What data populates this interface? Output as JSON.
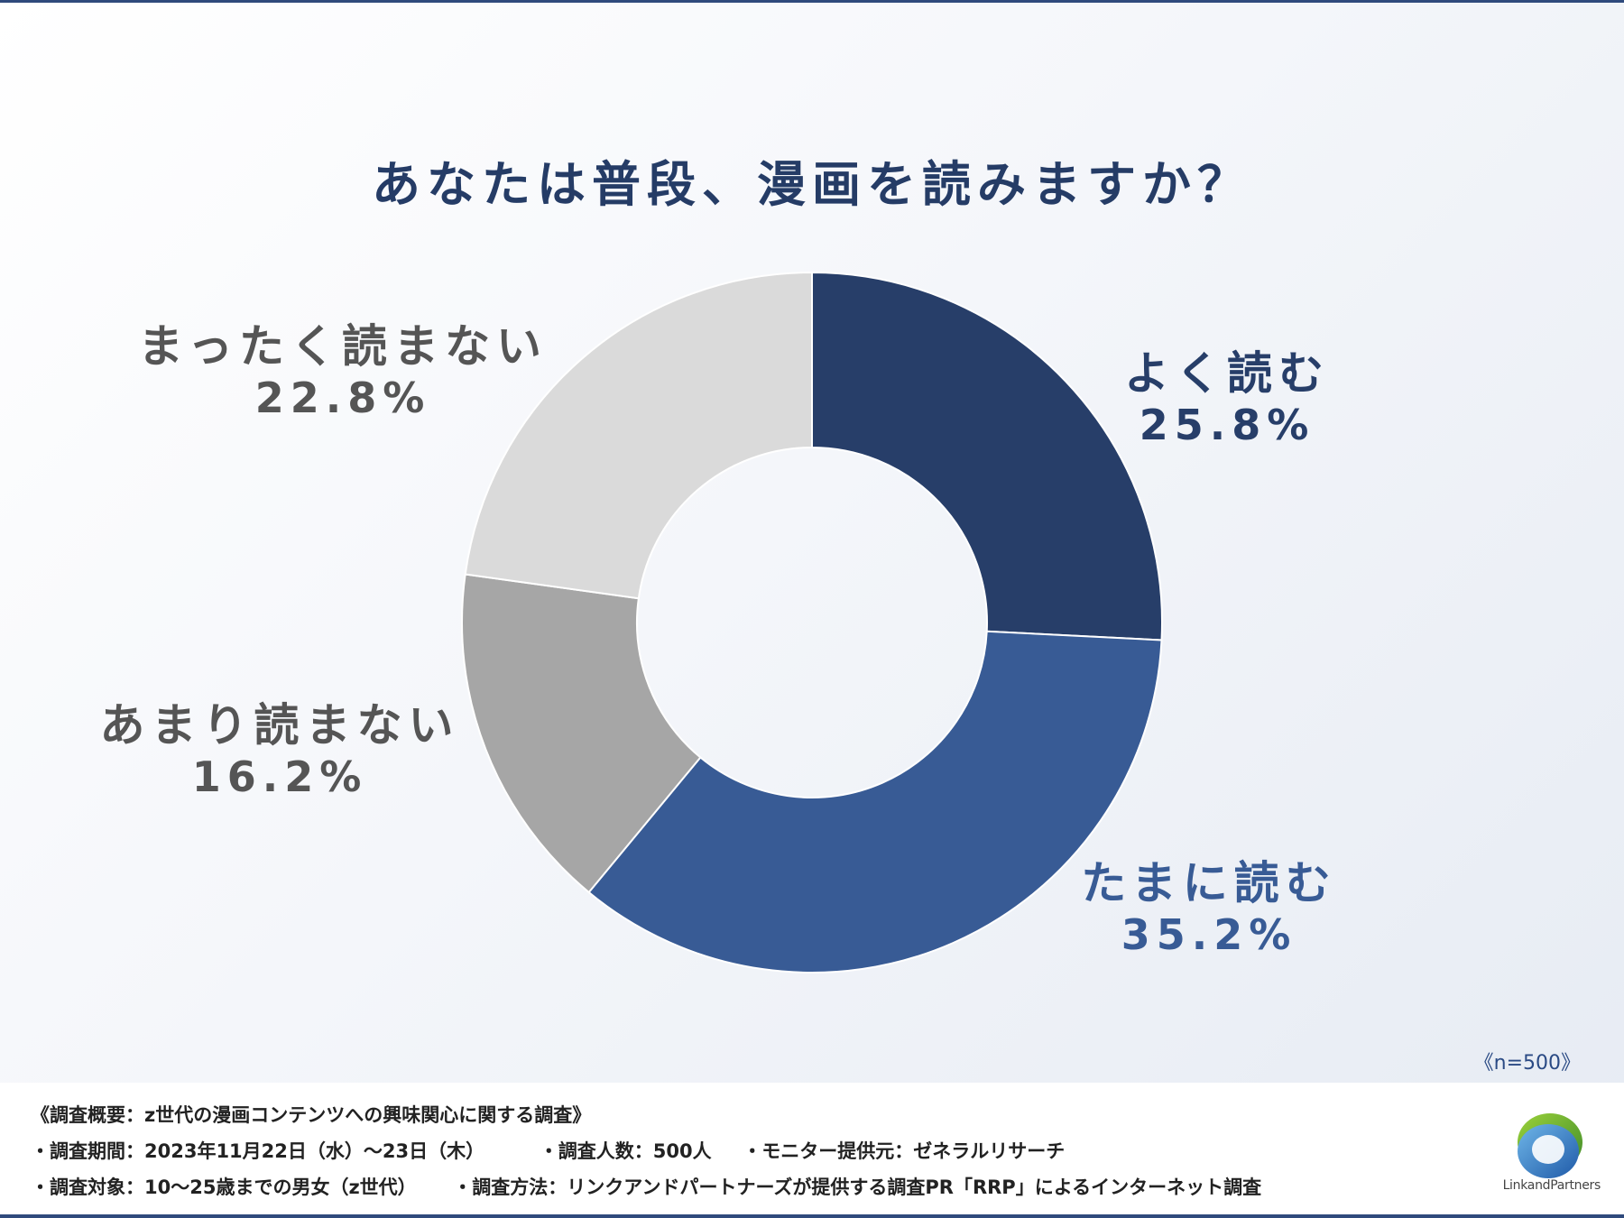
{
  "title": "あなたは普段、漫画を読みますか？",
  "sample_size": "《n=500》",
  "colors": {
    "title": "#253c66",
    "often": "#273e69",
    "sometimes": "#385b95",
    "rarely": "#a6a6a6",
    "never": "#dadada",
    "label_gray": "#555555"
  },
  "chart_data": {
    "type": "pie",
    "variant": "donut",
    "title": "あなたは普段、漫画を読みますか？",
    "categories": [
      "よく読む",
      "たまに読む",
      "あまり読まない",
      "まったく読まない"
    ],
    "values": [
      25.8,
      35.2,
      16.2,
      22.8
    ],
    "value_labels": [
      "25.8%",
      "35.2%",
      "16.2%",
      "22.8%"
    ],
    "unit": "%",
    "n": 500
  },
  "footer": {
    "heading": "《調査概要：z世代の漫画コンテンツへの興味関心に関する調査》",
    "period": "・調査期間：2023年11月22日（水）～23日（木）",
    "respondents": "・調査人数：500人",
    "monitor": "・モニター提供元：ゼネラルリサーチ",
    "target": "・調査対象：10～25歳までの男女（z世代）",
    "method": "・調査方法：リンクアンドパートナーズが提供する調査PR「RRP」によるインターネット調査"
  },
  "logo": {
    "icon": "link-and-partners-logo-icon",
    "name": "LinkandPartners"
  }
}
